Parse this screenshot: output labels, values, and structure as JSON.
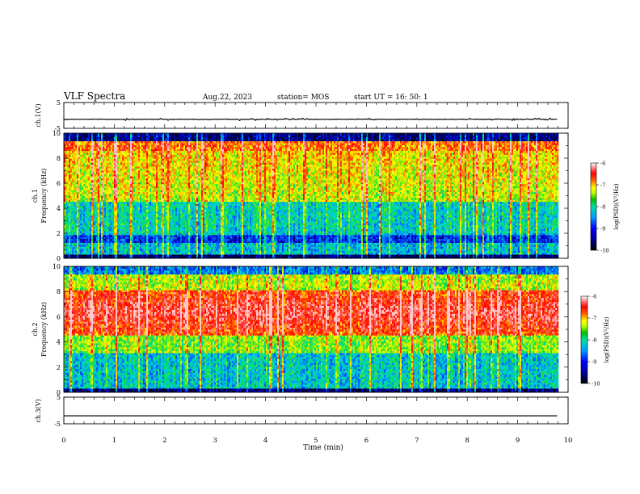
{
  "header": {
    "title": "VLF Spectra",
    "date": "Aug.22, 2023",
    "station": "station= MOS",
    "start": "start  UT =   16: 50: 1"
  },
  "chart_data": [
    {
      "type": "line",
      "panel": "ch1-waveform",
      "ylabel": "ch.1(V)",
      "ylim": [
        -5,
        5
      ],
      "yticks": [
        "5",
        "-5"
      ],
      "xlim": [
        0,
        10
      ],
      "series": [
        {
          "description": "near-constant waveform trace",
          "y_level": -1.5,
          "x_end": 9.8
        }
      ]
    },
    {
      "type": "heatmap",
      "panel": "ch1-spectrogram",
      "ylabel": "ch.1\nFrequency (kHz)",
      "ylabel_lines": [
        "ch.1",
        "Frequency (kHz)"
      ],
      "ylim": [
        0,
        10
      ],
      "yticks": [
        "0",
        "2",
        "4",
        "6",
        "8",
        "10"
      ],
      "xlim": [
        0,
        10
      ],
      "data_x_end": 9.8,
      "colorbar": {
        "label": "log(PSD)(V²/Hz)",
        "range": [
          -10,
          -6
        ],
        "ticks": [
          "-6",
          "-7",
          "-8",
          "-9",
          "-10"
        ]
      }
    },
    {
      "type": "heatmap",
      "panel": "ch2-spectrogram",
      "ylabel": "ch.2\nFrequency (kHz)",
      "ylabel_lines": [
        "ch.2",
        "Frequency (kHz)"
      ],
      "ylim": [
        0,
        10
      ],
      "yticks": [
        "0",
        "2",
        "4",
        "6",
        "8",
        "10"
      ],
      "xlim": [
        0,
        10
      ],
      "data_x_end": 9.8,
      "colorbar": {
        "label": "log(PSD)(V²/Hz)",
        "range": [
          -10,
          -6
        ],
        "ticks": [
          "-6",
          "-7",
          "-8",
          "-9",
          "-10"
        ]
      }
    },
    {
      "type": "line",
      "panel": "ch3-waveform",
      "ylabel": "ch.3(V)",
      "ylim": [
        -5,
        5
      ],
      "yticks": [
        "5",
        "-5"
      ],
      "xlim": [
        0,
        10
      ],
      "series": [
        {
          "description": "flat trace",
          "y_level": -2,
          "x_end": 9.8
        }
      ]
    }
  ],
  "xaxis": {
    "label": "Time (min)",
    "ticks": [
      "0",
      "1",
      "2",
      "3",
      "4",
      "5",
      "6",
      "7",
      "8",
      "9",
      "10"
    ]
  },
  "colors": {
    "spectrum_scale": [
      "#000033",
      "#0000ff",
      "#00c0ff",
      "#00ff80",
      "#ffff00",
      "#ff0000",
      "#ffffff"
    ]
  }
}
